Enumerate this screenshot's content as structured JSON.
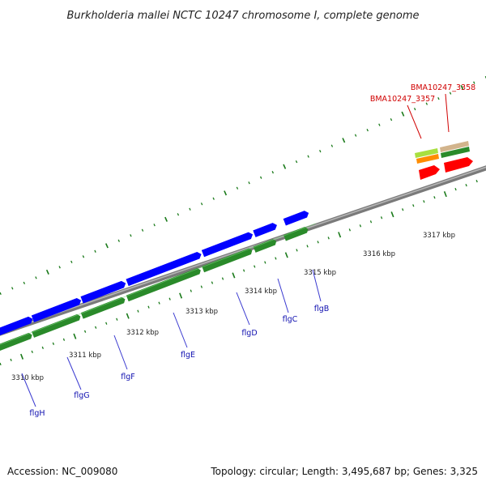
{
  "title": "Burkholderia mallei NCTC 10247 chromosome I, complete genome",
  "footer": {
    "accession": "Accession: NC_009080",
    "summary": "Topology: circular; Length: 3,495,687 bp; Genes: 3,325"
  },
  "scale_labels": [
    "3310 kbp",
    "3311 kbp",
    "3312 kbp",
    "3313 kbp",
    "3314 kbp",
    "3315 kbp",
    "3316 kbp",
    "3317 kbp"
  ],
  "gene_labels": [
    "flgH",
    "flgG",
    "flgF",
    "flgE",
    "flgD",
    "flgC",
    "flgB"
  ],
  "locus_labels": [
    "BMA10247_3357",
    "BMA10247_3358"
  ],
  "colors": {
    "cds": "#0000ff",
    "gene": "#2a8a2a",
    "locus_gene": "#ff0000",
    "backbone": "#888888",
    "ticks": "#1a7a1a",
    "gene_label": "#1010b0",
    "locus_label": "#d00000"
  }
}
